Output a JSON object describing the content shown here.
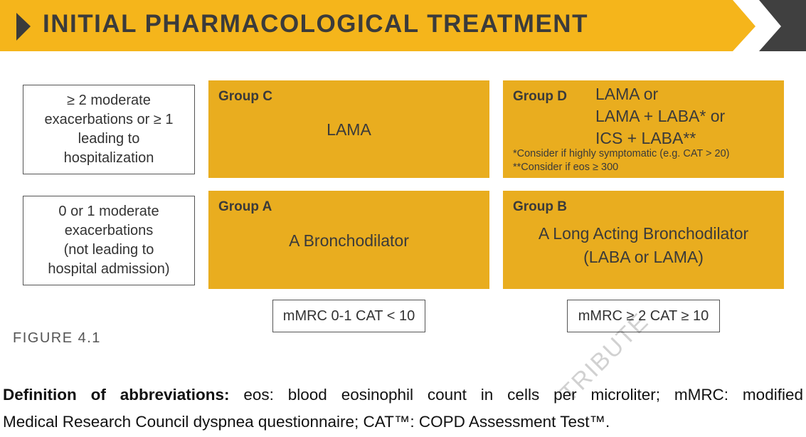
{
  "header": {
    "title": "INITIAL PHARMACOLOGICAL TREATMENT"
  },
  "rows": [
    {
      "lines": [
        "≥ 2 moderate",
        "exacerbations or ≥ 1",
        "leading to",
        "hospitalization"
      ]
    },
    {
      "lines": [
        "0 or 1 moderate",
        "exacerbations",
        "(not leading to",
        "hospital admission)"
      ]
    }
  ],
  "groups": [
    {
      "label": "Group C",
      "lines": [
        "LAMA"
      ]
    },
    {
      "label": "Group D",
      "lines": [
        "LAMA  or",
        "LAMA + LABA* or",
        "ICS + LABA**"
      ],
      "notes": [
        "*Consider if highly symptomatic (e.g. CAT > 20)",
        "**Consider if eos ≥ 300"
      ]
    },
    {
      "label": "Group A",
      "lines": [
        "A Bronchodilator"
      ]
    },
    {
      "label": "Group B",
      "lines": [
        "A  Long Acting Bronchodilator",
        "(LABA or LAMA)"
      ]
    }
  ],
  "columns": [
    "mMRC 0-1 CAT < 10",
    "mMRC ≥ 2 CAT ≥ 10"
  ],
  "figure_label": "FIGURE 4.1",
  "definitions": {
    "term": "Definition of abbreviations:",
    "lines": [
      "eos: blood eosinophil count in cells per microliter; mMRC: modified",
      "Medical Research Council dyspnea questionnaire; CAT™: COPD Assessment Test™."
    ]
  },
  "watermark": "TRIBUTE"
}
